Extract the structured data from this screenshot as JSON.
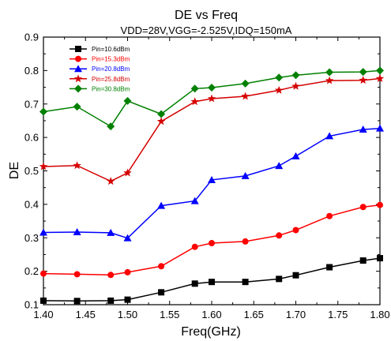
{
  "chart_data": {
    "type": "line",
    "title": "DE vs  Freq",
    "subtitle": "VDD=28V,VGG=-2.525V,IDQ=150mA",
    "xlabel": "Freq(GHz)",
    "ylabel": "DE",
    "xlim": [
      1.4,
      1.8
    ],
    "ylim": [
      0.1,
      0.9
    ],
    "xticks": [
      "1.40",
      "1.45",
      "1.50",
      "1.55",
      "1.60",
      "1.65",
      "1.70",
      "1.75",
      "1.80"
    ],
    "yticks": [
      "0.1",
      "0.2",
      "0.3",
      "0.4",
      "0.5",
      "0.6",
      "0.7",
      "0.8",
      "0.9"
    ],
    "legend_position": "top-left",
    "x": [
      1.4,
      1.44,
      1.48,
      1.5,
      1.54,
      1.58,
      1.6,
      1.64,
      1.68,
      1.7,
      1.74,
      1.78,
      1.8
    ],
    "series": [
      {
        "name": "Pin=10.6dBm",
        "color": "#000000",
        "marker": "square",
        "values": [
          0.112,
          0.111,
          0.112,
          0.115,
          0.137,
          0.163,
          0.168,
          0.168,
          0.177,
          0.188,
          0.212,
          0.232,
          0.239
        ]
      },
      {
        "name": "Pin=15.3dBm",
        "color": "#ff0000",
        "marker": "circle",
        "values": [
          0.193,
          0.191,
          0.189,
          0.197,
          0.215,
          0.273,
          0.284,
          0.289,
          0.307,
          0.323,
          0.365,
          0.392,
          0.398
        ]
      },
      {
        "name": "Pin=20.8dBm",
        "color": "#0000ff",
        "marker": "triangle",
        "values": [
          0.316,
          0.317,
          0.315,
          0.299,
          0.396,
          0.41,
          0.473,
          0.485,
          0.515,
          0.544,
          0.604,
          0.624,
          0.627
        ]
      },
      {
        "name": "Pin=25.8dBm",
        "color": "#d40000",
        "marker": "star",
        "values": [
          0.513,
          0.516,
          0.469,
          0.494,
          0.648,
          0.707,
          0.716,
          0.723,
          0.741,
          0.753,
          0.77,
          0.771,
          0.776
        ]
      },
      {
        "name": "Pin=30.8dBm",
        "color": "#008000",
        "marker": "diamond",
        "values": [
          0.677,
          0.692,
          0.633,
          0.709,
          0.67,
          0.746,
          0.749,
          0.761,
          0.779,
          0.786,
          0.795,
          0.796,
          0.8
        ]
      }
    ]
  }
}
